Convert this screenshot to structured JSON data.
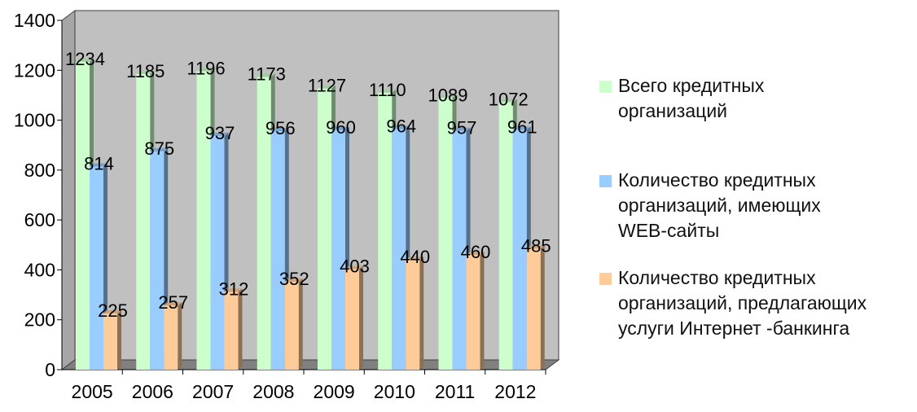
{
  "chart_data": {
    "type": "bar",
    "categories": [
      "2005",
      "2006",
      "2007",
      "2008",
      "2009",
      "2010",
      "2011",
      "2012"
    ],
    "series": [
      {
        "name": "Всего кредитных\nорганизаций",
        "color": "#ccffcc",
        "values": [
          1234,
          1185,
          1196,
          1173,
          1127,
          1110,
          1089,
          1072
        ]
      },
      {
        "name": "Количество кредитных\nорганизаций, имеющих\nWEB-сайты",
        "color": "#99ccff",
        "values": [
          814,
          875,
          937,
          956,
          960,
          964,
          957,
          961
        ]
      },
      {
        "name": "Количество кредитных\nорганизаций, предлагающих\nуслуги Интернет -банкинга",
        "color": "#ffcc99",
        "values": [
          225,
          257,
          312,
          352,
          403,
          440,
          460,
          485
        ]
      }
    ],
    "yticks": [
      "0",
      "200",
      "400",
      "600",
      "800",
      "1000",
      "1200",
      "1400"
    ],
    "ylim": [
      0,
      1400
    ],
    "grid": false,
    "legend_position": "right",
    "colors": {
      "wall": "#c0c0c0",
      "floor": "#808080"
    }
  }
}
